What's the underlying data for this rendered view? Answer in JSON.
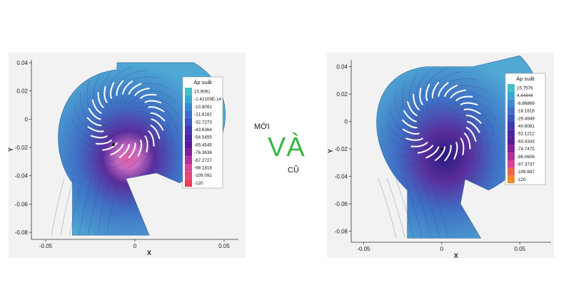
{
  "center": {
    "top": "MỚI",
    "middle": "VÀ",
    "bottom": "CŨ",
    "middle_color": "#3ab54a"
  },
  "colors": {
    "fluid_high": "#4fa9d4",
    "fluid_mid": "#3f6fc4",
    "fluid_low": "#5a2d9c",
    "hot_core": "#e05aa0",
    "panel": "#f2f2f2",
    "blade": "#ffffff"
  },
  "chart_data": [
    {
      "type": "heatmap",
      "xlabel": "X",
      "ylabel": "Y",
      "xlim": [
        -0.058,
        0.058
      ],
      "ylim": [
        -0.085,
        0.042
      ],
      "x_ticks": [
        {
          "v": -0.05,
          "label": "-0.05"
        },
        {
          "v": 0,
          "label": "0"
        },
        {
          "v": 0.05,
          "label": "0.05"
        }
      ],
      "y_ticks": [
        {
          "v": 0.04,
          "label": "0.04"
        },
        {
          "v": 0.02,
          "label": "0.02"
        },
        {
          "v": 0,
          "label": "0"
        },
        {
          "v": -0.02,
          "label": "-0.02"
        },
        {
          "v": -0.04,
          "label": "-0.04"
        },
        {
          "v": -0.06,
          "label": "-0.06"
        },
        {
          "v": -0.08,
          "label": "-0.08"
        }
      ],
      "legend": {
        "title": "Áp suất",
        "placement": "right",
        "levels": [
          "10.9091",
          "-1.42109E-14",
          "-10.9091",
          "-21.8182",
          "-32.7273",
          "-43.6364",
          "-54.5455",
          "-65.4545",
          "-76.3636",
          "-87.2727",
          "-98.1818",
          "-109.091",
          "-120"
        ],
        "colors": [
          "#3ec2c9",
          "#39a8cf",
          "#3a8ad0",
          "#3b6fca",
          "#3c55c2",
          "#4236b3",
          "#4b23a3",
          "#5a1a96",
          "#82229a",
          "#b0339c",
          "#d6449e",
          "#e8457a",
          "#ef3b5c"
        ]
      },
      "low_pressure_center": {
        "x": -0.012,
        "y": -0.018
      }
    },
    {
      "type": "heatmap",
      "xlabel": "X",
      "ylabel": "Y",
      "xlim": [
        -0.058,
        0.07
      ],
      "ylim": [
        -0.088,
        0.045
      ],
      "x_ticks": [
        {
          "v": -0.05,
          "label": "-0.05"
        },
        {
          "v": 0,
          "label": "0"
        },
        {
          "v": 0.05,
          "label": "0.05"
        }
      ],
      "y_ticks": [
        {
          "v": 0.04,
          "label": "0.04"
        },
        {
          "v": 0.02,
          "label": "0.02"
        },
        {
          "v": 0,
          "label": "0"
        },
        {
          "v": -0.02,
          "label": "-0.02"
        },
        {
          "v": -0.04,
          "label": "-0.04"
        },
        {
          "v": -0.06,
          "label": "-0.06"
        },
        {
          "v": -0.08,
          "label": "-0.08"
        }
      ],
      "legend": {
        "title": "Áp suất",
        "placement": "right",
        "levels": [
          "15.7576",
          "4.44444",
          "-6.86869",
          "-18.1818",
          "-29.4949",
          "-40.8081",
          "-52.1212",
          "-63.4343",
          "-74.7475",
          "-86.0606",
          "-97.3737",
          "-108.687",
          "-120"
        ],
        "colors": [
          "#3ec2c9",
          "#39a8cf",
          "#3a8ad0",
          "#3b6fca",
          "#3c55c2",
          "#4236b3",
          "#4b23a3",
          "#5a1a96",
          "#82229a",
          "#b0339c",
          "#d6449e",
          "#e86a4a",
          "#f08a2a"
        ]
      },
      "low_pressure_center": {
        "x": 0.0,
        "y": -0.02
      }
    }
  ]
}
